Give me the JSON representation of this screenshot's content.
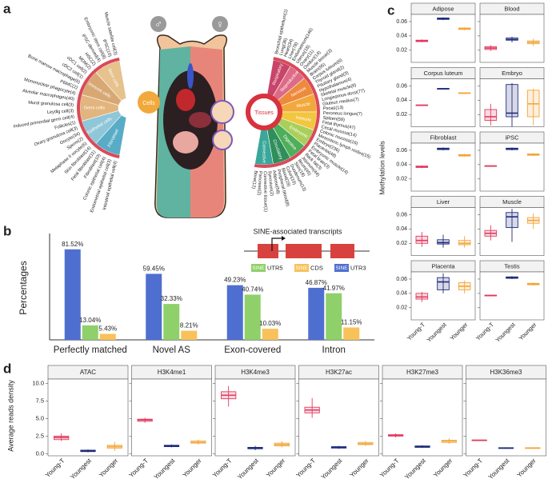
{
  "panel_labels": [
    "a",
    "b",
    "c",
    "d"
  ],
  "diagram": {
    "symbols": [
      "♂",
      "♀"
    ],
    "cells": {
      "title": "Cells",
      "groups": [
        {
          "label": "Stem cells",
          "color": "#e6c28c"
        },
        {
          "label": "Immune cells",
          "color": "#d8a874"
        },
        {
          "label": "Germ cells",
          "color": "#e2b57e"
        },
        {
          "label": "Epithelial cells",
          "color": "#8fc6d8"
        },
        {
          "label": "Fibroblast",
          "color": "#58acc6"
        }
      ],
      "labels": [
        "Muscle satellite cell(3)",
        "iPSC(10)",
        "Embryonic stem cell(8)",
        "iPSC-derived(4)",
        "HSC(2)",
        "MDM(2)",
        "cDC1 cell(2)",
        "cDC2 cell(1)",
        "Bone marrow macrophage(6)",
        "PBMC(2)",
        "Mononuclear phagocyte(4)",
        "Alveolar macrophages(40)",
        "Mural granulosa cell(3)",
        "Leydig cell(3)",
        "Induced primordial germ cell(4)",
        "Follicles(1)",
        "Ovary granulosa cell(3)",
        "Oocyte(34)",
        "Sperm(2)",
        "Metaphase II oocyte(6)",
        "Skin fibroblast(14)",
        "Fetal fibroblast(11)",
        "Fibroblast(10)",
        "Colonic epithelial cell(4)",
        "Endometrial epithelial cell(3)",
        "Intestinal epithelial cell(4)"
      ]
    },
    "tissues": {
      "title": "Tissues",
      "groups": [
        {
          "label": "Respiratory",
          "color": "#c8456a"
        },
        {
          "label": "Reproductive",
          "color": "#dd6b86"
        },
        {
          "label": "Nervous",
          "color": "#ee8a3c"
        },
        {
          "label": "Muscle",
          "color": "#f2a93b"
        },
        {
          "label": "Immune",
          "color": "#f3c640"
        },
        {
          "label": "Embryonic",
          "color": "#a9cf5a"
        },
        {
          "label": "Digestive",
          "color": "#4fae5a"
        },
        {
          "label": "Circulatory",
          "color": "#2f8f5a"
        },
        {
          "label": "Connective",
          "color": "#3aa79a"
        }
      ],
      "labels": [
        "Bronchial epithelium(1)",
        "Lung(36)",
        "Heart(34)",
        "Liver(78)",
        "Endometrium(146)",
        "Uterus(18)",
        "Ovary(11)",
        "Oviduct(14)",
        "Muscle tissue(3)",
        "Brain(95)",
        "Corpus luteum(6)",
        "Thyroid gland(2)",
        "Pituitary gland(3)",
        "Hypothalamus(4)",
        "Skeletal muscle(8)",
        "Longissimus dorsi(77)",
        "Gluteus medius(7)",
        "Psoas(13)",
        "Peroneus longus(7)",
        "Spleen(59)",
        "Fetal thymus(47)",
        "Cecal mucosa(14)",
        "Colonic mucosa(16)",
        "Mesenteric lymph nodes(15)",
        "Embryo(236)",
        "Placenta(48)",
        "Embryonic muscle(14)",
        "Fetal brain(3)",
        "Back fat(3)",
        "Jejunum(44)",
        "Ileum(45)",
        "Skin(18)",
        "Duodenum(13)",
        "Colon(10)",
        "Blood(19)",
        "Peripheral blood(8)",
        "Adipose(58)",
        "Synovium(2)",
        "Connective tissue(1)",
        "Pancreas(2)",
        "Bone(12)"
      ]
    }
  },
  "chart_data": [
    {
      "type": "bar",
      "title": "SINE-associated transcripts",
      "ylabel": "Percentages",
      "key_text": "SINE",
      "categories": [
        "Perfectly matched",
        "Novel AS",
        "Exon-covered",
        "Intron"
      ],
      "ylim": [
        0,
        90
      ],
      "series": [
        {
          "name": "UTR3",
          "color": "#4f6fd0",
          "values": [
            81.52,
            59.45,
            49.23,
            46.87
          ],
          "value_labels": [
            "81.52%",
            "59.45%",
            "49.23%",
            "46.87%"
          ]
        },
        {
          "name": "UTR5",
          "color": "#8fd06a",
          "values": [
            13.04,
            32.33,
            40.74,
            41.97
          ],
          "value_labels": [
            "13.04%",
            "32.33%",
            "40.74%",
            "41.97%"
          ]
        },
        {
          "name": "CDS",
          "color": "#f8c15a",
          "values": [
            5.43,
            8.21,
            10.03,
            11.15
          ],
          "value_labels": [
            "5.43%",
            "8.21%",
            "10.03%",
            "11.15%"
          ]
        }
      ]
    },
    {
      "type": "box",
      "ylabel": "Methylation levels",
      "categories": [
        "Young-T",
        "Youngest",
        "Younger"
      ],
      "colors": [
        "#e23a5e",
        "#1f2a7a",
        "#f3a53a"
      ],
      "ylim": [
        0.003,
        0.07
      ],
      "yticks": [
        0.02,
        0.04,
        0.06
      ],
      "facets": [
        {
          "title": "Adipose",
          "stats": [
            [
              0.031,
              0.032,
              0.033,
              0.034,
              0.035
            ],
            [
              0.062,
              0.063,
              0.064,
              0.065,
              0.066
            ],
            [
              0.048,
              0.049,
              0.05,
              0.051,
              0.052
            ]
          ]
        },
        {
          "title": "Blood",
          "stats": [
            [
              0.019,
              0.021,
              0.023,
              0.025,
              0.027
            ],
            [
              0.031,
              0.034,
              0.035,
              0.037,
              0.039
            ],
            [
              0.026,
              0.029,
              0.031,
              0.033,
              0.036
            ]
          ]
        },
        {
          "title": "Corpus luteum",
          "stats": [
            [
              0.032,
              0.0325,
              0.033,
              0.0335,
              0.034
            ],
            [
              0.055,
              0.0555,
              0.056,
              0.0565,
              0.057
            ],
            [
              0.049,
              0.0495,
              0.05,
              0.0505,
              0.051
            ]
          ]
        },
        {
          "title": "Embryo",
          "stats": [
            [
              0.005,
              0.012,
              0.017,
              0.027,
              0.035
            ],
            [
              0.003,
              0.017,
              0.022,
              0.062,
              0.064
            ],
            [
              0.005,
              0.017,
              0.035,
              0.054,
              0.056
            ]
          ]
        },
        {
          "title": "Fibroblast",
          "stats": [
            [
              0.035,
              0.036,
              0.037,
              0.038,
              0.039
            ],
            [
              0.06,
              0.061,
              0.062,
              0.063,
              0.064
            ],
            [
              0.051,
              0.052,
              0.053,
              0.054,
              0.055
            ]
          ]
        },
        {
          "title": "iPSC",
          "stats": [
            [
              0.037,
              0.0375,
              0.038,
              0.0385,
              0.039
            ],
            [
              0.06,
              0.061,
              0.062,
              0.063,
              0.064
            ],
            [
              0.052,
              0.053,
              0.054,
              0.055,
              0.056
            ]
          ]
        },
        {
          "title": "Liver",
          "stats": [
            [
              0.015,
              0.02,
              0.024,
              0.03,
              0.036
            ],
            [
              0.014,
              0.019,
              0.021,
              0.025,
              0.032
            ],
            [
              0.014,
              0.018,
              0.02,
              0.024,
              0.03
            ]
          ]
        },
        {
          "title": "Muscle",
          "stats": [
            [
              0.024,
              0.03,
              0.034,
              0.038,
              0.045
            ],
            [
              0.022,
              0.042,
              0.057,
              0.063,
              0.068
            ],
            [
              0.04,
              0.048,
              0.052,
              0.056,
              0.062
            ]
          ]
        },
        {
          "title": "Placenta",
          "stats": [
            [
              0.028,
              0.032,
              0.035,
              0.04,
              0.042
            ],
            [
              0.04,
              0.045,
              0.056,
              0.062,
              0.068
            ],
            [
              0.04,
              0.045,
              0.05,
              0.055,
              0.058
            ]
          ]
        },
        {
          "title": "Testis",
          "stats": [
            [
              0.036,
              0.0365,
              0.037,
              0.0375,
              0.038
            ],
            [
              0.06,
              0.061,
              0.062,
              0.063,
              0.064
            ],
            [
              0.051,
              0.052,
              0.053,
              0.054,
              0.055
            ]
          ]
        }
      ]
    },
    {
      "type": "box",
      "ylabel": "Average reads density",
      "categories": [
        "Young-T",
        "Youngest",
        "Younger"
      ],
      "colors": [
        "#e23a5e",
        "#1f2a7a",
        "#f3a53a"
      ],
      "ylim": [
        -0.3,
        10.6
      ],
      "yticks": [
        {
          "value": 0,
          "label": "0.0"
        },
        2.5,
        {
          "value": 5,
          "label": "5.0"
        },
        7.5,
        {
          "value": 10,
          "label": "10.0"
        }
      ],
      "facets": [
        {
          "title": "ATAC",
          "stats": [
            [
              1.8,
              2.0,
              2.3,
              2.5,
              2.9
            ],
            [
              0.2,
              0.3,
              0.4,
              0.5,
              0.6
            ],
            [
              0.4,
              0.8,
              1.0,
              1.2,
              1.7
            ]
          ]
        },
        {
          "title": "H3K4me1",
          "stats": [
            [
              4.4,
              4.6,
              4.8,
              4.9,
              5.1
            ],
            [
              0.9,
              1.0,
              1.1,
              1.2,
              1.3
            ],
            [
              1.3,
              1.5,
              1.6,
              1.8,
              2.0
            ]
          ]
        },
        {
          "title": "H3K4me3",
          "stats": [
            [
              6.7,
              7.8,
              8.3,
              8.8,
              9.6
            ],
            [
              0.5,
              0.7,
              0.8,
              0.9,
              1.1
            ],
            [
              0.9,
              1.1,
              1.3,
              1.5,
              1.8
            ]
          ]
        },
        {
          "title": "H3K27ac",
          "stats": [
            [
              5.1,
              5.8,
              6.2,
              6.6,
              7.9
            ],
            [
              0.7,
              0.8,
              0.9,
              1.0,
              1.1
            ],
            [
              1.1,
              1.3,
              1.4,
              1.6,
              1.8
            ]
          ]
        },
        {
          "title": "H3K27me3",
          "stats": [
            [
              2.3,
              2.5,
              2.6,
              2.7,
              2.9
            ],
            [
              0.8,
              0.9,
              1.0,
              1.1,
              1.2
            ],
            [
              1.4,
              1.6,
              1.8,
              1.9,
              2.2
            ]
          ]
        },
        {
          "title": "H3K36me3",
          "stats": [
            [
              1.8,
              1.85,
              1.9,
              1.95,
              2.0
            ],
            [
              0.7,
              0.75,
              0.8,
              0.85,
              0.9
            ],
            [
              0.7,
              0.75,
              0.8,
              0.85,
              0.9
            ]
          ]
        }
      ]
    }
  ]
}
